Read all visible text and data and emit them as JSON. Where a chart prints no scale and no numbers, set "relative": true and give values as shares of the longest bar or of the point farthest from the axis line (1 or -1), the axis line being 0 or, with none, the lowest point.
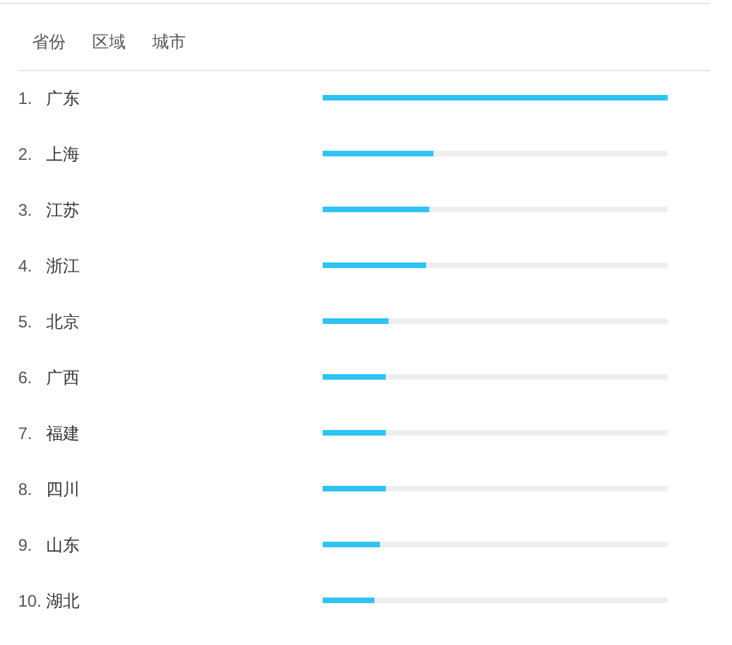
{
  "chart_data": {
    "type": "bar",
    "orientation": "horizontal",
    "relative": true,
    "annotations": [
      "省份",
      "区域",
      "城市"
    ],
    "categories": [
      "1. 广东",
      "2. 上海",
      "3. 江苏",
      "4. 浙江",
      "5. 北京",
      "6. 广西",
      "7. 福建",
      "8. 四川",
      "9. 山东",
      "10. 湖北"
    ],
    "values": [
      1,
      0.321,
      0.309,
      0.3,
      0.191,
      0.183,
      0.183,
      0.183,
      0.166,
      0.15
    ],
    "color": "#2ec3f3"
  }
}
